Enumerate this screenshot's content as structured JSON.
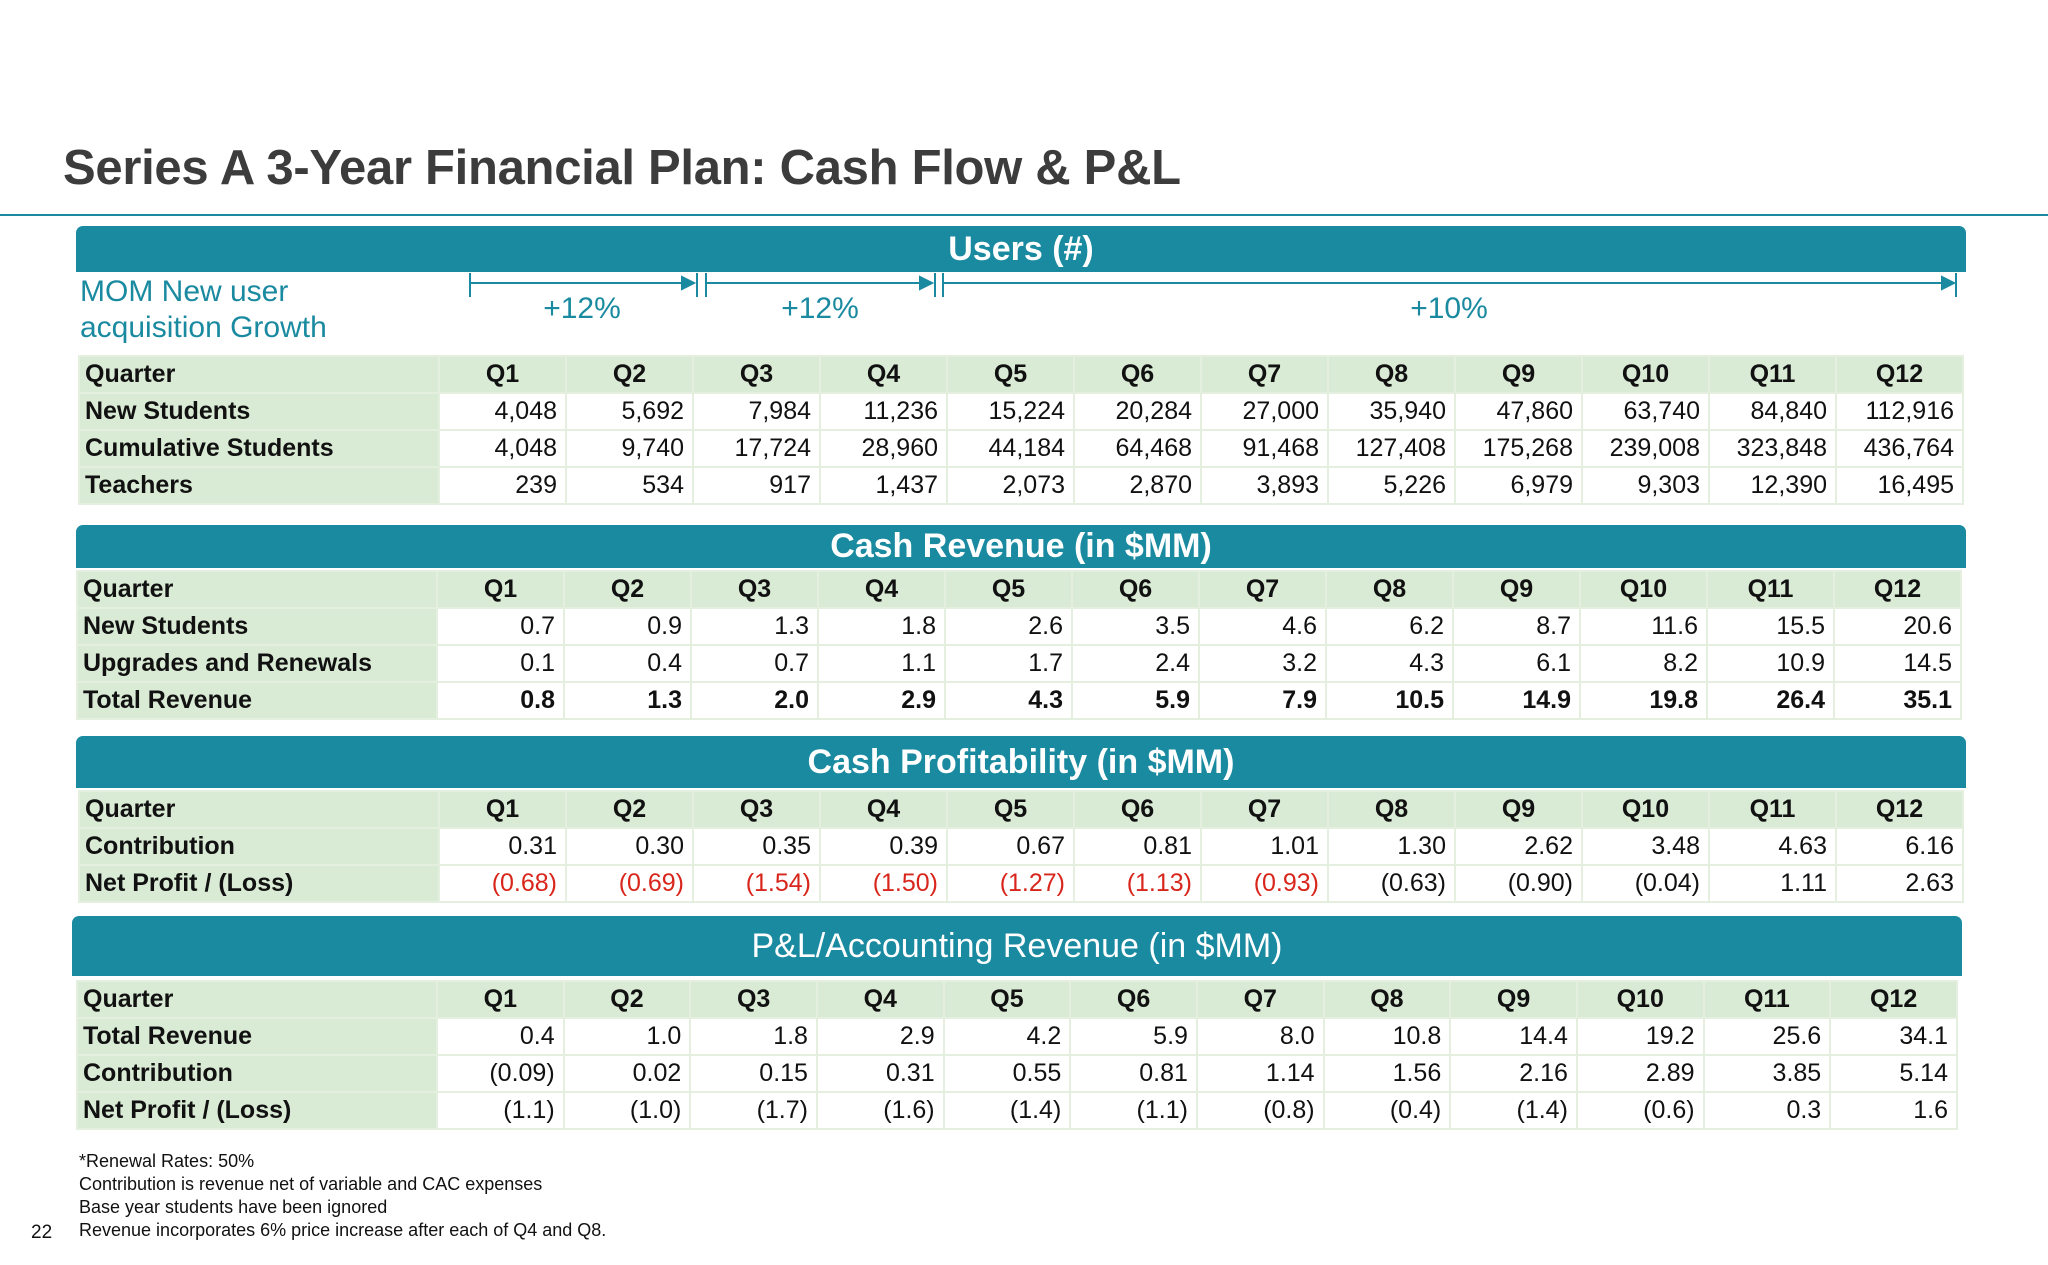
{
  "title": "Series A 3-Year Financial Plan: Cash Flow & P&L",
  "colors": {
    "accent": "#1a8aa0",
    "label_bg": "#d9ead5",
    "negative": "#d9261c",
    "title_text": "#3c3c3c"
  },
  "users": {
    "banner": "Users (#)",
    "growth": {
      "label_line1": "MOM New user",
      "label_line2": "acquisition Growth",
      "segments": [
        "+12%",
        "+12%",
        "+10%"
      ]
    },
    "header": [
      "Quarter",
      "Q1",
      "Q2",
      "Q3",
      "Q4",
      "Q5",
      "Q6",
      "Q7",
      "Q8",
      "Q9",
      "Q10",
      "Q11",
      "Q12"
    ],
    "rows": [
      {
        "label": "New Students",
        "values": [
          "4,048",
          "5,692",
          "7,984",
          "11,236",
          "15,224",
          "20,284",
          "27,000",
          "35,940",
          "47,860",
          "63,740",
          "84,840",
          "112,916"
        ]
      },
      {
        "label": "Cumulative Students",
        "values": [
          "4,048",
          "9,740",
          "17,724",
          "28,960",
          "44,184",
          "64,468",
          "91,468",
          "127,408",
          "175,268",
          "239,008",
          "323,848",
          "436,764"
        ]
      },
      {
        "label": "Teachers",
        "values": [
          "239",
          "534",
          "917",
          "1,437",
          "2,073",
          "2,870",
          "3,893",
          "5,226",
          "6,979",
          "9,303",
          "12,390",
          "16,495"
        ]
      }
    ]
  },
  "cash_revenue": {
    "banner": "Cash Revenue (in $MM)",
    "header": [
      "Quarter",
      "Q1",
      "Q2",
      "Q3",
      "Q4",
      "Q5",
      "Q6",
      "Q7",
      "Q8",
      "Q9",
      "Q10",
      "Q11",
      "Q12"
    ],
    "rows": [
      {
        "label": "New Students",
        "values": [
          "0.7",
          "0.9",
          "1.3",
          "1.8",
          "2.6",
          "3.5",
          "4.6",
          "6.2",
          "8.7",
          "11.6",
          "15.5",
          "20.6"
        ]
      },
      {
        "label": "Upgrades and Renewals",
        "values": [
          "0.1",
          "0.4",
          "0.7",
          "1.1",
          "1.7",
          "2.4",
          "3.2",
          "4.3",
          "6.1",
          "8.2",
          "10.9",
          "14.5"
        ]
      },
      {
        "label": "Total Revenue",
        "values": [
          "0.8",
          "1.3",
          "2.0",
          "2.9",
          "4.3",
          "5.9",
          "7.9",
          "10.5",
          "14.9",
          "19.8",
          "26.4",
          "35.1"
        ]
      }
    ]
  },
  "cash_profitability": {
    "banner": "Cash Profitability (in $MM)",
    "header": [
      "Quarter",
      "Q1",
      "Q2",
      "Q3",
      "Q4",
      "Q5",
      "Q6",
      "Q7",
      "Q8",
      "Q9",
      "Q10",
      "Q11",
      "Q12"
    ],
    "rows": [
      {
        "label": "Contribution",
        "values": [
          "0.31",
          "0.30",
          "0.35",
          "0.39",
          "0.67",
          "0.81",
          "1.01",
          "1.30",
          "2.62",
          "3.48",
          "4.63",
          "6.16"
        ]
      },
      {
        "label": "Net Profit / (Loss)",
        "values": [
          "(0.68)",
          "(0.69)",
          "(1.54)",
          "(1.50)",
          "(1.27)",
          "(1.13)",
          "(0.93)",
          "(0.63)",
          "(0.90)",
          "(0.04)",
          "1.11",
          "2.63"
        ]
      }
    ]
  },
  "pl_revenue": {
    "banner": "P&L/Accounting Revenue (in $MM)",
    "header": [
      "Quarter",
      "Q1",
      "Q2",
      "Q3",
      "Q4",
      "Q5",
      "Q6",
      "Q7",
      "Q8",
      "Q9",
      "Q10",
      "Q11",
      "Q12"
    ],
    "rows": [
      {
        "label": "Total Revenue",
        "values": [
          "0.4",
          "1.0",
          "1.8",
          "2.9",
          "4.2",
          "5.9",
          "8.0",
          "10.8",
          "14.4",
          "19.2",
          "25.6",
          "34.1"
        ]
      },
      {
        "label": "Contribution",
        "values": [
          "(0.09)",
          "0.02",
          "0.15",
          "0.31",
          "0.55",
          "0.81",
          "1.14",
          "1.56",
          "2.16",
          "2.89",
          "3.85",
          "5.14"
        ]
      },
      {
        "label": "Net Profit / (Loss)",
        "values": [
          "(1.1)",
          "(1.0)",
          "(1.7)",
          "(1.6)",
          "(1.4)",
          "(1.1)",
          "(0.8)",
          "(0.4)",
          "(1.4)",
          "(0.6)",
          "0.3",
          "1.6"
        ]
      }
    ]
  },
  "footnotes": [
    "*Renewal Rates: 50%",
    "Contribution is revenue net of variable and CAC expenses",
    "Base year students have been ignored",
    "Revenue incorporates 6% price increase after each of Q4 and Q8."
  ],
  "page_number": "22"
}
